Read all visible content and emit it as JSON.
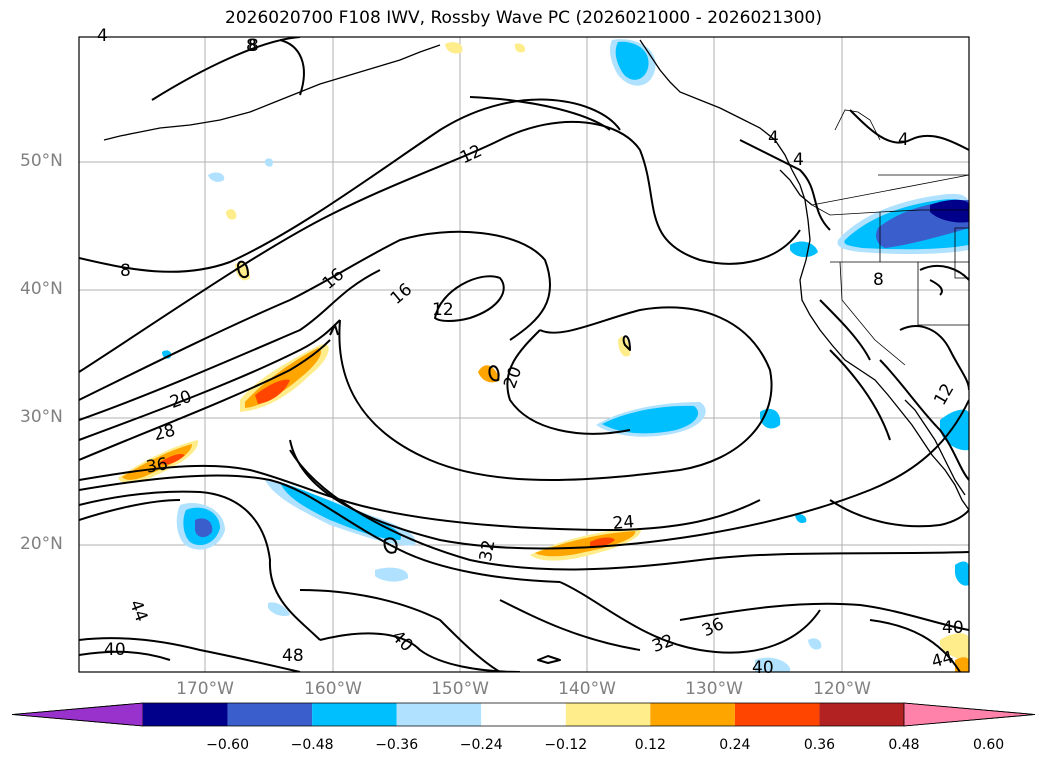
{
  "title": "2026020700 F108 IWV, Rossby Wave PC (2026021000 - 2026021300)",
  "map": {
    "lat_labels": [
      "50°N",
      "40°N",
      "30°N",
      "20°N"
    ],
    "lon_labels": [
      "170°W",
      "160°W",
      "150°W",
      "140°W",
      "130°W",
      "120°W"
    ],
    "contour_labels": [
      "4",
      "8",
      "12",
      "16",
      "16",
      "12",
      "20",
      "20",
      "28",
      "36",
      "24",
      "32",
      "40",
      "44",
      "40",
      "48",
      "32",
      "36",
      "40",
      "40",
      "44",
      "8",
      "8",
      "8",
      "4",
      "4",
      "4",
      "12"
    ]
  },
  "colorbar": {
    "colors": [
      "#9932CC",
      "#00008B",
      "#3A5FCD",
      "#00BFFF",
      "#B0E2FF",
      "#FFFFFF",
      "#FFEC8B",
      "#FFA500",
      "#FF4500",
      "#B22222",
      "#FF82AB"
    ],
    "ticks": [
      "−0.60",
      "−0.48",
      "−0.36",
      "−0.24",
      "−0.12",
      "0.12",
      "0.24",
      "0.36",
      "0.48",
      "0.60"
    ]
  }
}
